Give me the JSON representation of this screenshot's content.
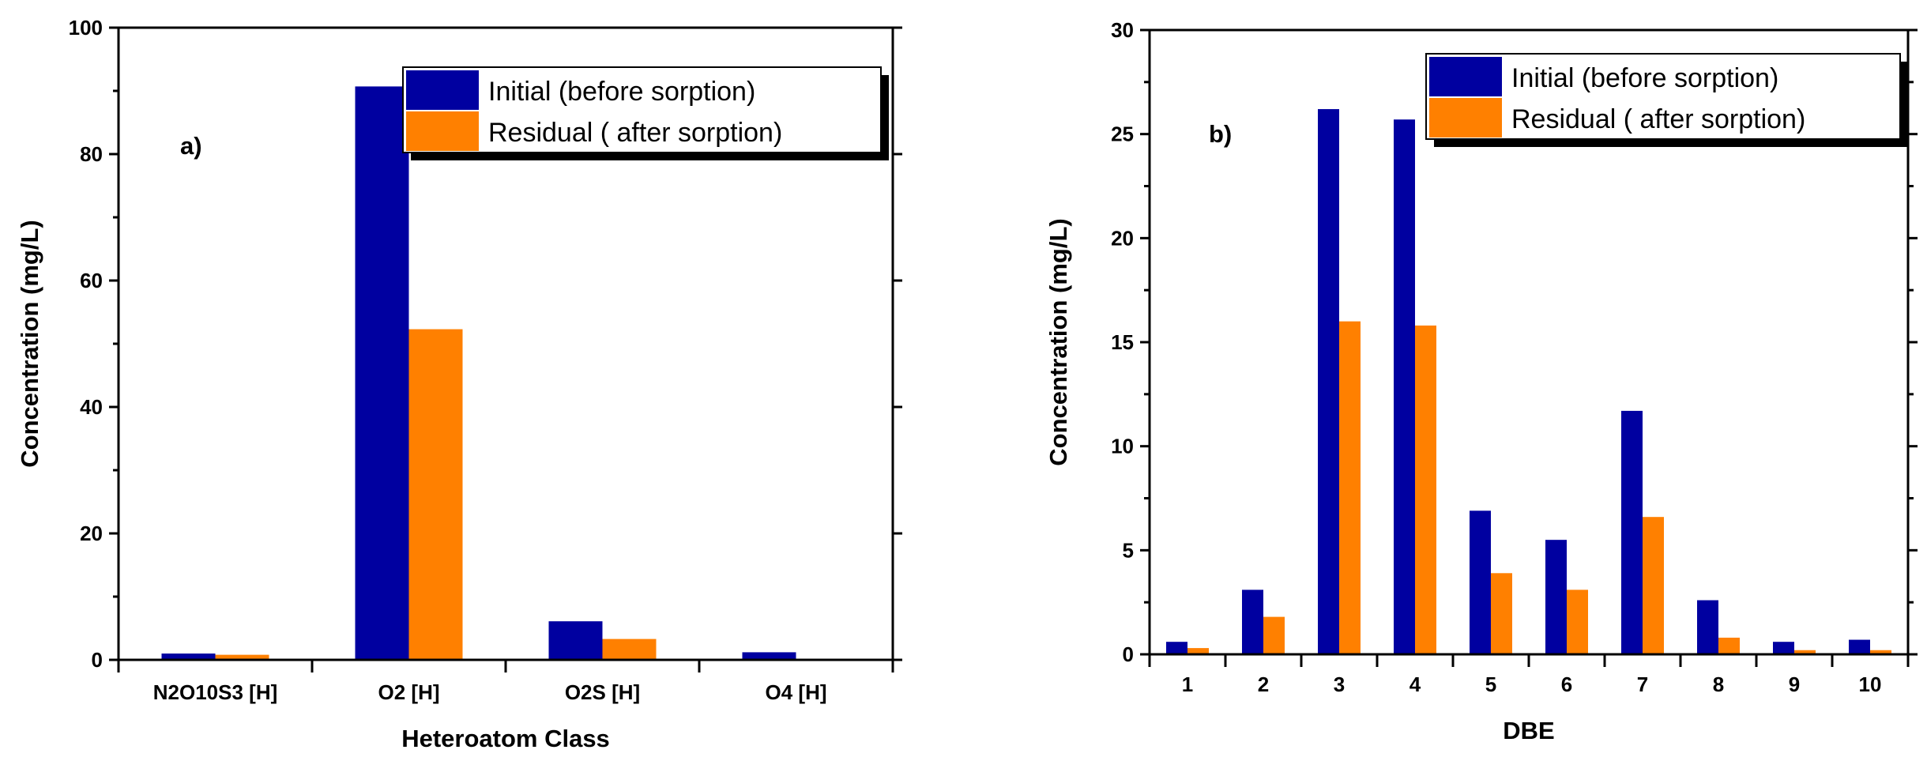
{
  "chart_data": [
    {
      "type": "bar",
      "panel_label": "a)",
      "categories": [
        "N2O10S3 [H]",
        "O2 [H]",
        "O2S [H]",
        "O4 [H]"
      ],
      "series": [
        {
          "name": "Initial (before sorption)",
          "color": "#0000a0",
          "values": [
            1.0,
            90.7,
            6.1,
            1.2
          ]
        },
        {
          "name": "Residual ( after sorption)",
          "color": "#ff8000",
          "values": [
            0.8,
            52.3,
            3.3,
            0.0
          ]
        }
      ],
      "xlabel": "Heteroatom Class",
      "ylabel": "Concentration  (mg/L)",
      "ylim": [
        0,
        100
      ],
      "yticks": [
        0,
        20,
        40,
        60,
        80,
        100
      ],
      "ytick_labels": [
        "0",
        "20",
        "40",
        "60",
        "80",
        "100"
      ],
      "legend_position": "top-right"
    },
    {
      "type": "bar",
      "panel_label": "b)",
      "categories": [
        "1",
        "2",
        "3",
        "4",
        "5",
        "6",
        "7",
        "8",
        "9",
        "10"
      ],
      "series": [
        {
          "name": "Initial (before sorption)",
          "color": "#0000a0",
          "values": [
            0.6,
            3.1,
            26.2,
            25.7,
            6.9,
            5.5,
            11.7,
            2.6,
            0.6,
            0.7
          ]
        },
        {
          "name": "Residual ( after sorption)",
          "color": "#ff8000",
          "values": [
            0.3,
            1.8,
            16.0,
            15.8,
            3.9,
            3.1,
            6.6,
            0.8,
            0.2,
            0.2
          ]
        }
      ],
      "xlabel": "DBE",
      "ylabel": "Concentration (mg/L)",
      "ylim": [
        0,
        30
      ],
      "yticks": [
        0,
        5,
        10,
        15,
        20,
        25,
        30
      ],
      "ytick_labels": [
        "0",
        "5",
        "10",
        "15",
        "20",
        "25",
        "30"
      ],
      "legend_position": "top-right"
    }
  ]
}
